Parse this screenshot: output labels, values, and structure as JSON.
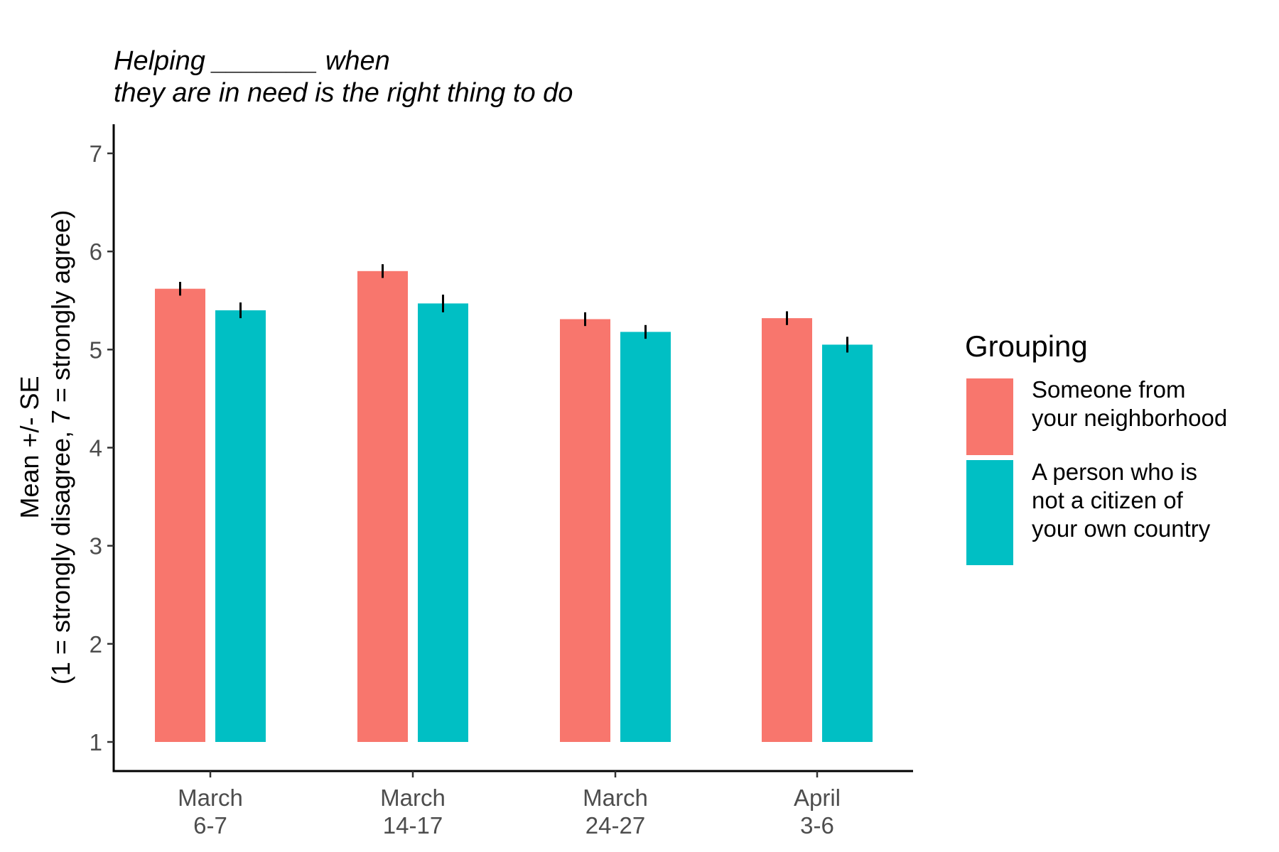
{
  "chart_data": {
    "type": "bar",
    "title": [
      "Helping _______ when",
      "they are in need is the right thing to do"
    ],
    "ylabel": [
      "Mean +/- SE",
      "(1 = strongly disagree, 7 = strongly agree)"
    ],
    "xlabel": "",
    "categories": [
      [
        "March",
        "6-7"
      ],
      [
        "March",
        "14-17"
      ],
      [
        "March",
        "24-27"
      ],
      [
        "April",
        "3-6"
      ]
    ],
    "ylim": [
      1,
      7
    ],
    "yticks": [
      1,
      2,
      3,
      4,
      5,
      6,
      7
    ],
    "baseline": 1,
    "legend": {
      "title": "Grouping",
      "position": "right"
    },
    "series": [
      {
        "name": [
          "Someone from",
          "your neighborhood"
        ],
        "color": "#F8766D",
        "values": [
          5.62,
          5.8,
          5.31,
          5.32
        ],
        "se": [
          0.07,
          0.07,
          0.07,
          0.07
        ]
      },
      {
        "name": [
          "A person who is",
          "not a citizen of",
          "your own country"
        ],
        "color": "#00BFC4",
        "values": [
          5.4,
          5.47,
          5.18,
          5.05
        ],
        "se": [
          0.08,
          0.09,
          0.07,
          0.08
        ]
      }
    ],
    "grid": false
  }
}
